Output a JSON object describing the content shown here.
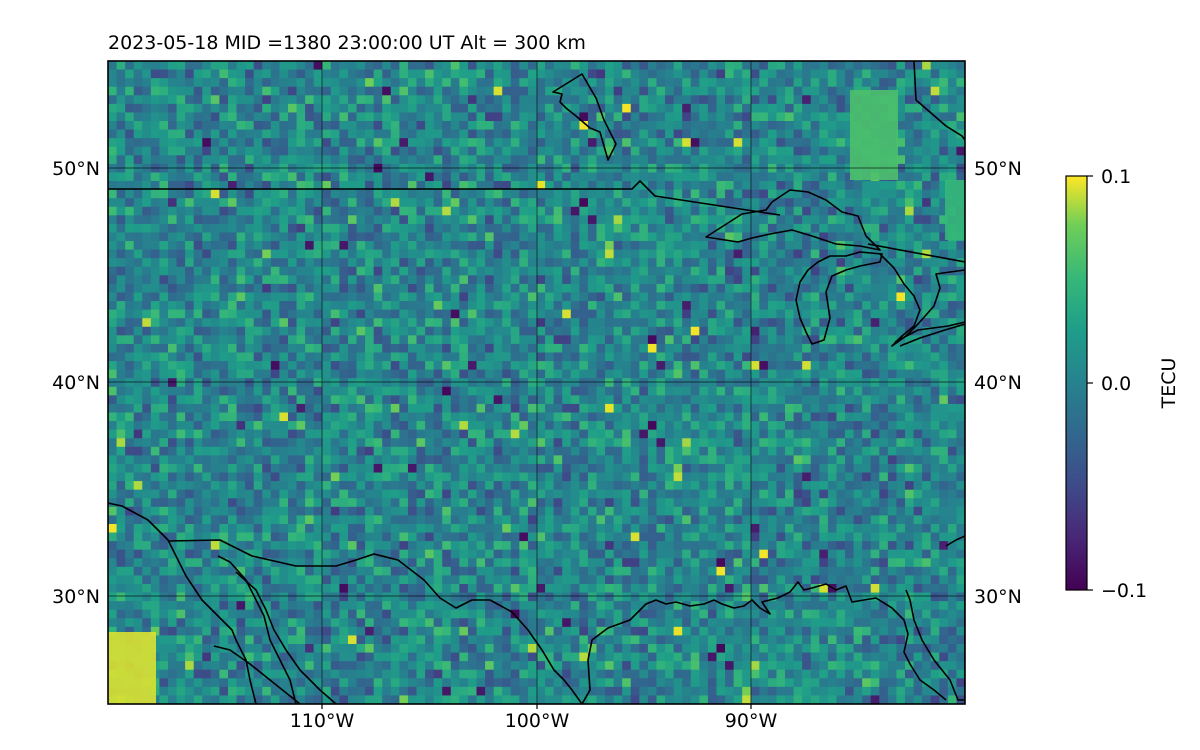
{
  "map": {
    "title": "2023-05-18  MID =1380    23:00:00  UT  Alt = 300 km",
    "lat_labels": [
      "50°N",
      "40°N",
      "30°N"
    ],
    "lon_labels": [
      "110°W",
      "100°W",
      "90°W"
    ],
    "extent": {
      "lon": [
        -120,
        -80
      ],
      "lat": [
        25,
        55
      ]
    },
    "gridlines": {
      "lon": [
        -110,
        -100,
        -90
      ],
      "lat": [
        30,
        40,
        50
      ]
    },
    "field": "differential TEC noise, mostly near zero with scattered positive/negative cells",
    "features": [
      "US-Canada border",
      "Great Lakes",
      "Gulf of Mexico coast",
      "Baja California"
    ]
  },
  "colorbar": {
    "label": "TECU",
    "tick_labels": [
      "0.1",
      "0.0",
      "−0.1"
    ],
    "range": [
      -0.1,
      0.1
    ],
    "colormap": "viridis",
    "colors": [
      "#440154",
      "#3b528b",
      "#21918c",
      "#5ec962",
      "#fde725"
    ]
  }
}
